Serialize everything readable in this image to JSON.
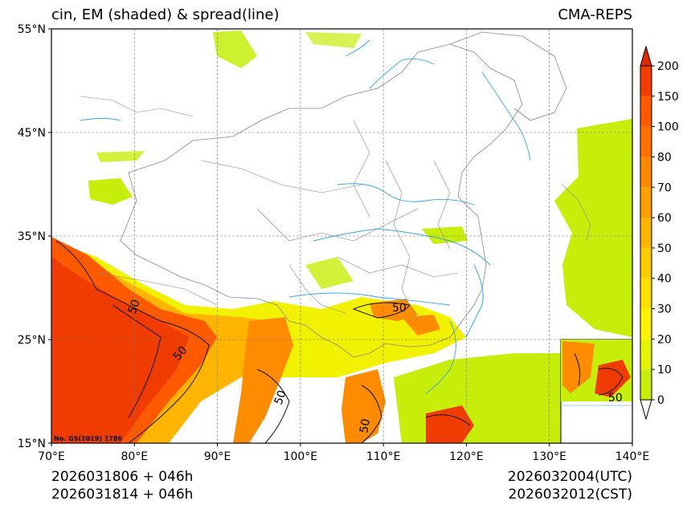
{
  "title_left": "cin, EM (shaded) & spread(line)",
  "title_right": "CMA-REPS",
  "map": {
    "lat_labels": [
      "55°N",
      "45°N",
      "35°N",
      "25°N",
      "15°N"
    ],
    "lon_labels": [
      "70°E",
      "80°E",
      "90°E",
      "100°E",
      "110°E",
      "120°E",
      "130°E",
      "140°E"
    ],
    "approval_no": "No. GS(2019) 1786",
    "contour_label": "50",
    "colors": {
      "land_outline": "#888888",
      "river": "#3aa6e0",
      "light_green": "#c6ee0a",
      "yellow": "#f2f200",
      "orange": "#ff8c00",
      "dark_orange": "#ff5a00",
      "red_orange": "#f03c00"
    }
  },
  "colorbar": {
    "levels": [
      "0",
      "10",
      "20",
      "30",
      "40",
      "50",
      "60",
      "70",
      "80",
      "100",
      "150",
      "200"
    ],
    "colors": [
      "#c6ee0a",
      "#e5f200",
      "#fff200",
      "#ffe000",
      "#ffcc00",
      "#ffb400",
      "#ff9f00",
      "#ff8a00",
      "#ff7000",
      "#ff5a00",
      "#f23c00",
      "#e02a00"
    ]
  },
  "footer": {
    "init_utc": "2026031806  +  046h",
    "init_cst": "2026031814  +  046h",
    "valid_utc": "2026032004(UTC)",
    "valid_cst": "2026032012(CST)"
  }
}
